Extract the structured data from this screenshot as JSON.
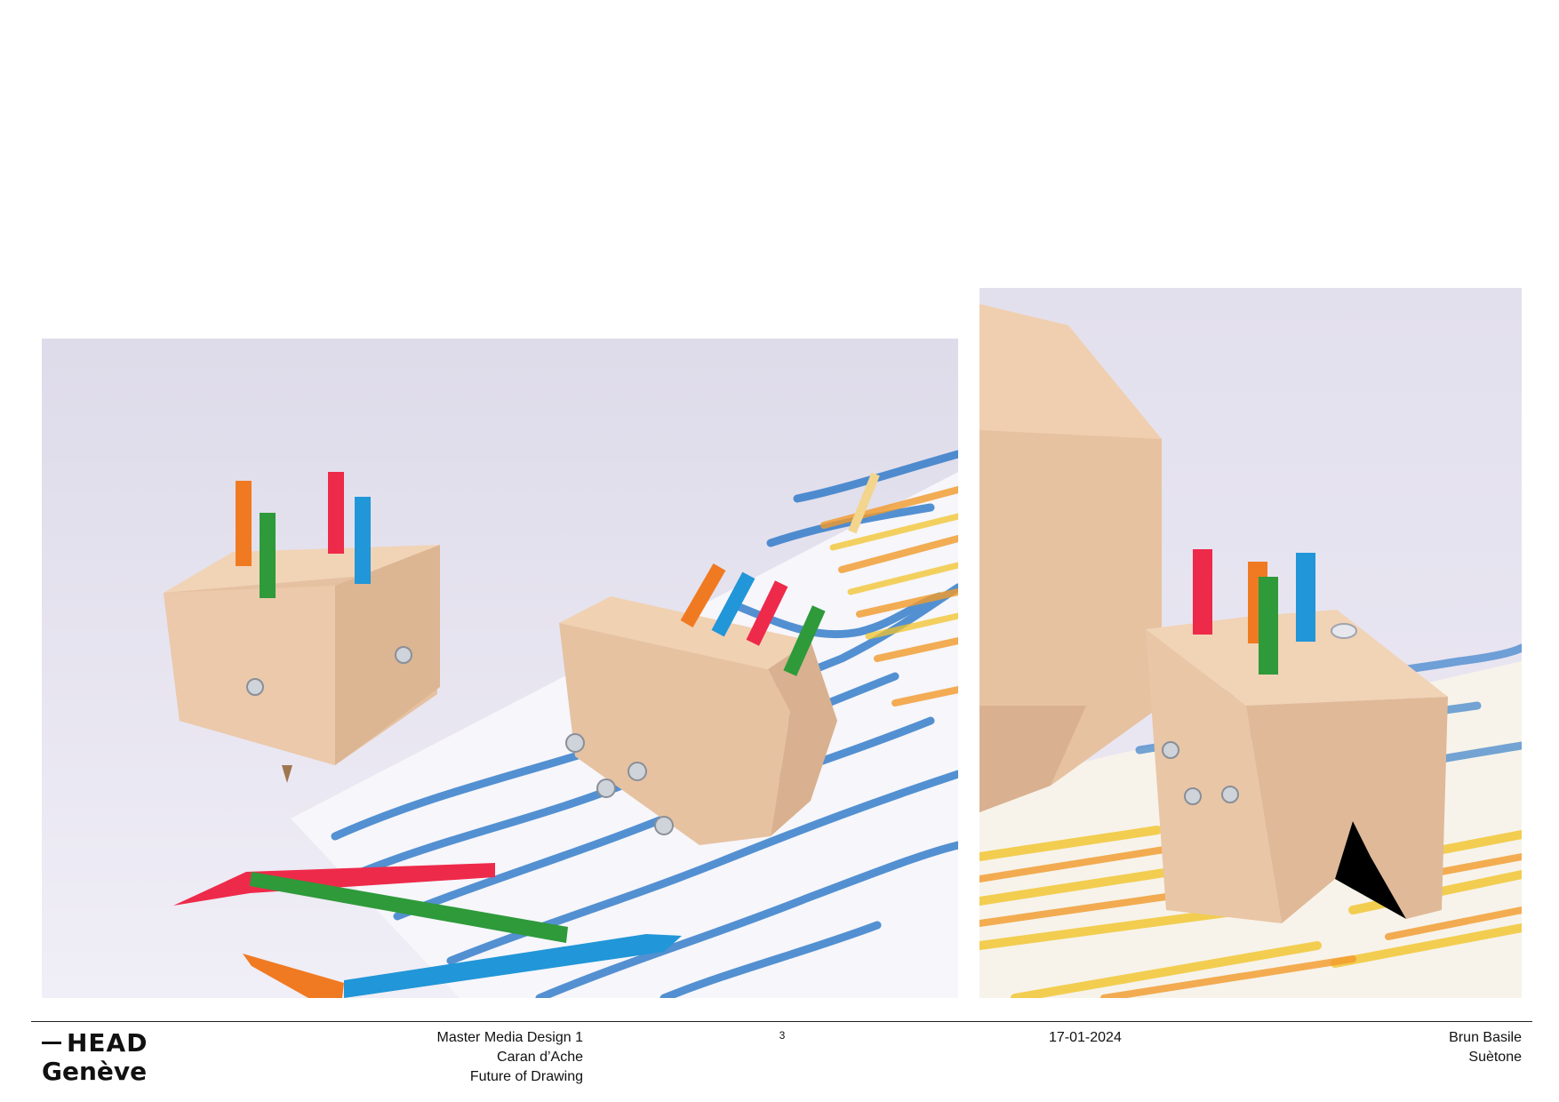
{
  "logo": {
    "line1": "HEAD",
    "line2": "Genève"
  },
  "course": {
    "line1": "Master Media Design 1",
    "line2": "Caran d’Ache",
    "line3": "Future of Drawing"
  },
  "page_number": "3",
  "date": "17-01-2024",
  "author": {
    "line1": "Brun Basile",
    "line2": "Suètone"
  },
  "colors": {
    "wood": "#e9c5a4",
    "pencil_orange": "#f07a22",
    "pencil_red": "#ee2a4a",
    "pencil_green": "#2e9a3a",
    "pencil_blue": "#2196d8",
    "scribble_blue": "#1d6fc4",
    "scribble_yellow": "#f2c42a",
    "background": "#e4e1ef"
  }
}
